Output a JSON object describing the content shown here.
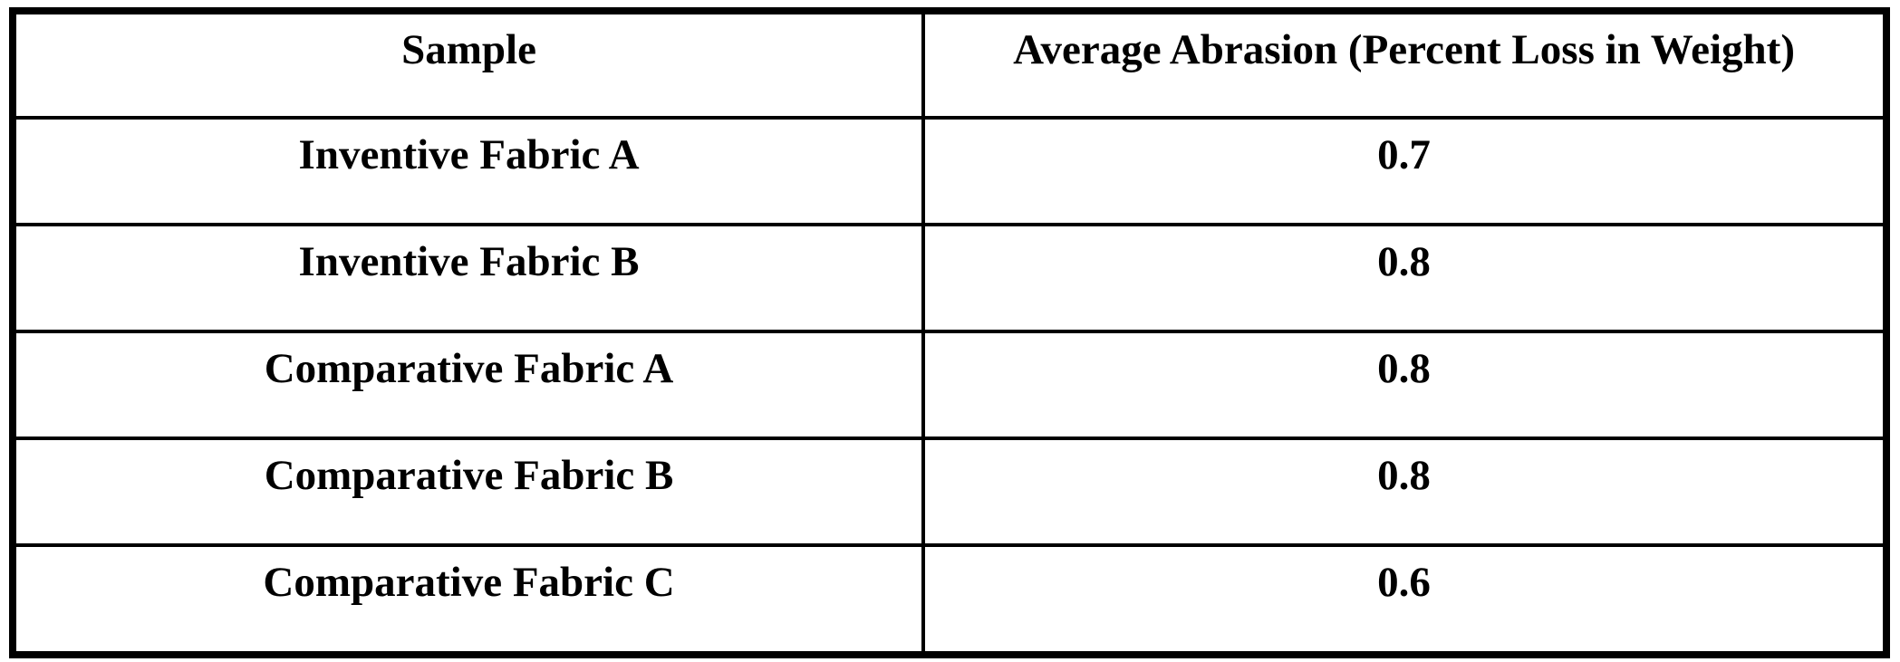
{
  "page": {
    "background": "#ffffff",
    "text_color": "#000000",
    "border_color": "#000000"
  },
  "table": {
    "columns": [
      {
        "label": "Sample"
      },
      {
        "label": "Average Abrasion (Percent Loss in Weight)"
      }
    ],
    "rows": [
      {
        "sample": "Inventive Fabric A",
        "value": "0.7"
      },
      {
        "sample": "Inventive Fabric B",
        "value": "0.8"
      },
      {
        "sample": "Comparative Fabric A",
        "value": "0.8"
      },
      {
        "sample": "Comparative Fabric B",
        "value": "0.8"
      },
      {
        "sample": "Comparative Fabric C",
        "value": "0.6"
      }
    ]
  }
}
